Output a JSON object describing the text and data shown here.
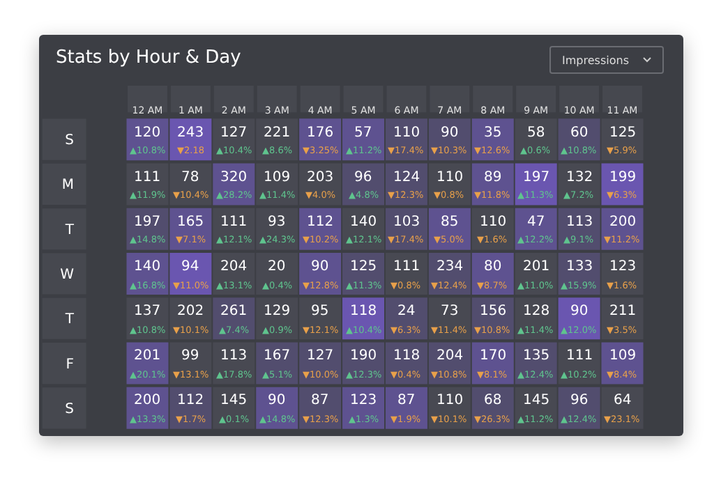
{
  "chart_data": {
    "type": "heatmap",
    "title": "Stats by Hour & Day",
    "data_labels": true,
    "categories": [
      "12 AM",
      "1 AM",
      "2 AM",
      "3 AM",
      "4 AM",
      "5 AM",
      "6 AM",
      "7 AM",
      "8 AM",
      "9 AM",
      "10 AM",
      "11 AM"
    ],
    "y_categories": [
      "S",
      "M",
      "T",
      "W",
      "T",
      "F",
      "S"
    ],
    "cells": [
      [
        120,
        243,
        127,
        221,
        176,
        57,
        110,
        90,
        35,
        58,
        60,
        125
      ],
      [
        111,
        78,
        320,
        109,
        203,
        96,
        124,
        110,
        89,
        197,
        132,
        199
      ],
      [
        197,
        165,
        111,
        93,
        112,
        140,
        103,
        85,
        110,
        47,
        113,
        200
      ],
      [
        140,
        94,
        204,
        20,
        90,
        125,
        111,
        234,
        80,
        201,
        133,
        123
      ],
      [
        137,
        202,
        261,
        129,
        95,
        118,
        24,
        73,
        156,
        128,
        90,
        211
      ],
      [
        201,
        99,
        113,
        167,
        127,
        190,
        118,
        204,
        170,
        135,
        111,
        109
      ],
      [
        200,
        112,
        145,
        90,
        87,
        123,
        87,
        110,
        68,
        145,
        96,
        64
      ]
    ],
    "colors": [
      [
        "#5e5290",
        "#6a56b0",
        "#484952",
        "#484952",
        "#5e5290",
        "#5e5290",
        "#524d6e",
        "#524d6e",
        "#5e5290",
        "#484952",
        "#524d6e",
        "#484952"
      ],
      [
        "#484952",
        "#484952",
        "#5e5290",
        "#484952",
        "#484952",
        "#524d6e",
        "#524d6e",
        "#484952",
        "#5e5290",
        "#6a56b0",
        "#484952",
        "#6a56b0"
      ],
      [
        "#524d6e",
        "#5e5290",
        "#484952",
        "#484952",
        "#5e5290",
        "#484952",
        "#524d6e",
        "#5e5290",
        "#484952",
        "#5e5290",
        "#524d6e",
        "#5e5290"
      ],
      [
        "#5e5290",
        "#6a56b0",
        "#484952",
        "#484952",
        "#5e5290",
        "#524d6e",
        "#484952",
        "#524d6e",
        "#5e5290",
        "#484952",
        "#524d6e",
        "#484952"
      ],
      [
        "#484952",
        "#484952",
        "#524d6e",
        "#484952",
        "#484952",
        "#6a56b0",
        "#524d6e",
        "#484952",
        "#524d6e",
        "#484952",
        "#6a56b0",
        "#484952"
      ],
      [
        "#5e5290",
        "#484952",
        "#484952",
        "#524d6e",
        "#524d6e",
        "#524d6e",
        "#524d6e",
        "#524d6e",
        "#5e5290",
        "#524d6e",
        "#484952",
        "#5e5290"
      ],
      [
        "#5e5290",
        "#524d6e",
        "#484952",
        "#5e5290",
        "#524d6e",
        "#5e5290",
        "#5e5290",
        "#484952",
        "#524d6e",
        "#484952",
        "#524d6e",
        "#484952"
      ]
    ],
    "annotations": [
      "Impressions",
      "▲10.8%",
      "▼2.18",
      "▲10.4%",
      "▲8.6%",
      "▼3.25%",
      "▲11.2%",
      "▼17.4%",
      "▼10.3%",
      "▼12.6%",
      "▲0.6%",
      "▲10.8%",
      "▼5.9%",
      "▲11.9%",
      "▼10.4%",
      "▲28.2%",
      "▲11.4%",
      "▼4.0%",
      "▲4.8%",
      "▼12.3%",
      "▼0.8%",
      "▼11.8%",
      "▲11.3%",
      "▲7.2%",
      "▼6.3%",
      "▲14.8%",
      "▼7.1%",
      "▲12.1%",
      "▲24.3%",
      "▼10.2%",
      "▲12.1%",
      "▼17.4%",
      "▼5.0%",
      "▼1.6%",
      "▲12.2%",
      "▲9.1%",
      "▼11.2%",
      "▲16.8%",
      "▼11.0%",
      "▲13.1%",
      "▲0.4%",
      "▼12.8%",
      "▲11.3%",
      "▼0.8%",
      "▼12.4%",
      "▼8.7%",
      "▲11.0%",
      "▲15.9%",
      "▼1.6%",
      "▲10.8%",
      "▼10.1%",
      "▲7.4%",
      "▲0.9%",
      "▼12.1%",
      "▲10.4%",
      "▼6.3%",
      "▼11.4%",
      "▼10.8%",
      "▲11.4%",
      "▲12.0%",
      "▼3.5%",
      "▲20.1%",
      "▼13.1%",
      "▲17.8%",
      "▲5.1%",
      "▼10.0%",
      "▲12.3%",
      "▼0.4%",
      "▼10.8%",
      "▼8.1%",
      "▲12.4%",
      "▲10.2%",
      "▼8.4%",
      "▲13.3%",
      "▼1.7%",
      "▲0.1%",
      "▲14.8%",
      "▼12.3%",
      "▲1.3%",
      "▼1.9%",
      "▼10.1%",
      "▼26.3%",
      "▲11.2%",
      "▲12.4%",
      "▼23.1%"
    ]
  }
}
